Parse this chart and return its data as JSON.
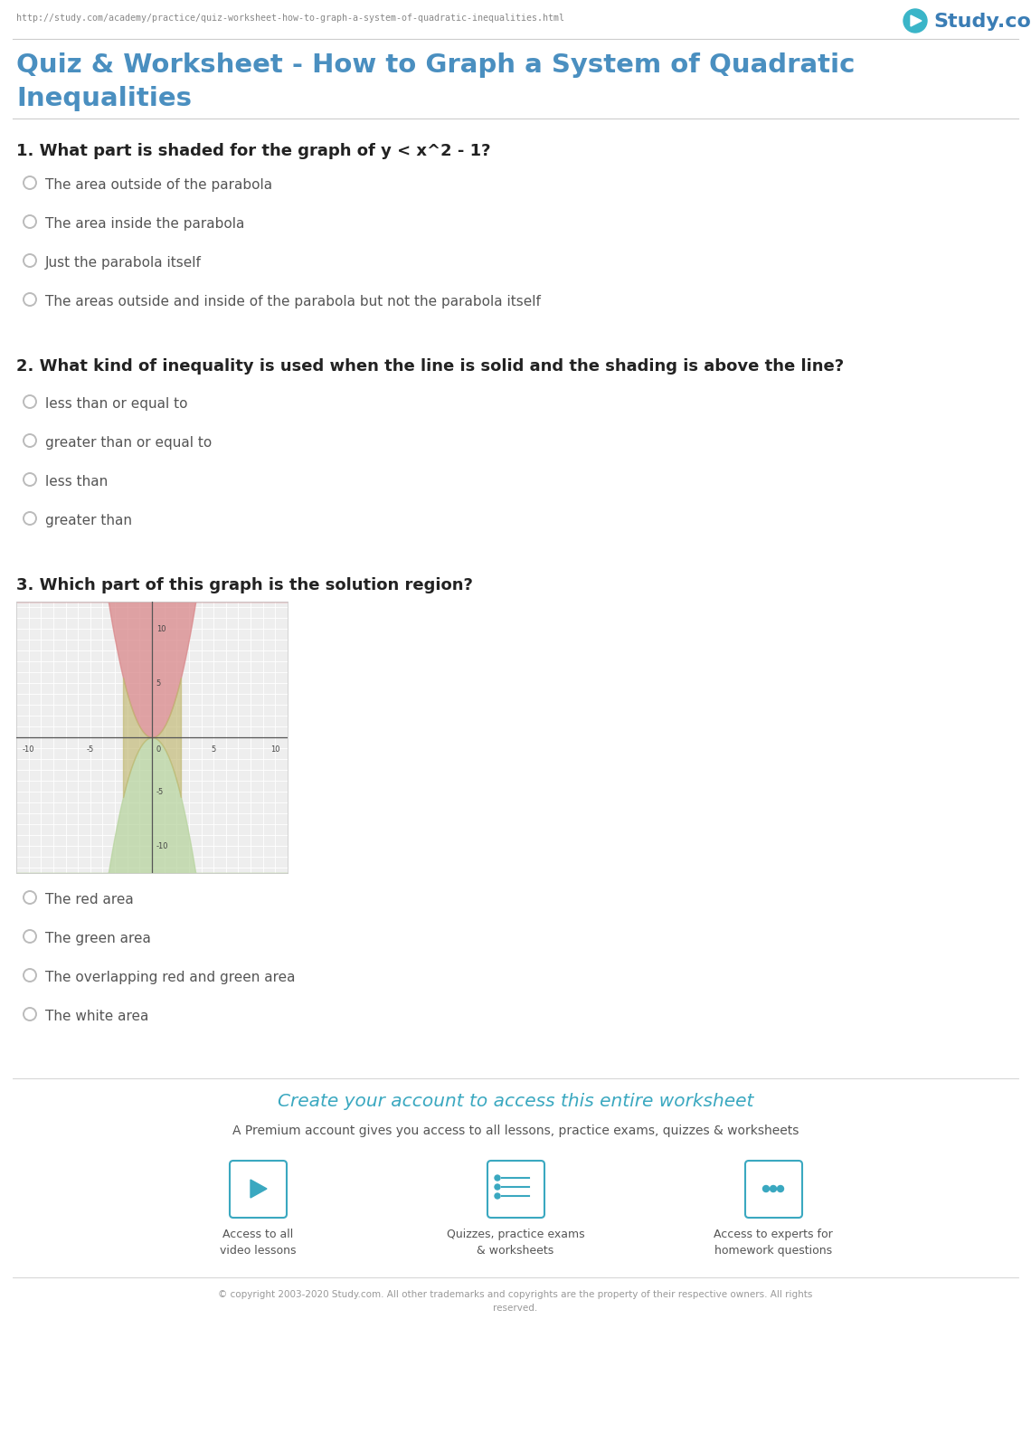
{
  "url": "http://study.com/academy/practice/quiz-worksheet-how-to-graph-a-system-of-quadratic-inequalities.html",
  "logo_text": "Study.com",
  "title_line1": "Quiz & Worksheet - How to Graph a System of Quadratic",
  "title_line2": "Inequalities",
  "title_color": "#4a8fc0",
  "bg_color": "#ffffff",
  "separator_color": "#cccccc",
  "option_color": "#555555",
  "radio_color": "#bbbbbb",
  "question_color": "#222222",
  "q1_text": "1. What part is shaded for the graph of y < x^2 - 1?",
  "q1_options": [
    "The area outside of the parabola",
    "The area inside the parabola",
    "Just the parabola itself",
    "The areas outside and inside of the parabola but not the parabola itself"
  ],
  "q2_text": "2. What kind of inequality is used when the line is solid and the shading is above the line?",
  "q2_options": [
    "less than or equal to",
    "greater than or equal to",
    "less than",
    "greater than"
  ],
  "q3_text": "3. Which part of this graph is the solution region?",
  "q3_options": [
    "The red area",
    "The green area",
    "The overlapping red and green area",
    "The white area"
  ],
  "red_fill_color": "#d9878a",
  "green_fill_color": "#b8d4a0",
  "overlap_color": "#c0b870",
  "graph_bg": "#eeeeee",
  "grid_color": "#ffffff",
  "axis_color": "#555555",
  "cta_text": "Create your account to access this entire worksheet",
  "cta_subtext": "A Premium account gives you access to all lessons, practice exams, quizzes & worksheets",
  "cta_color": "#3aa8c0",
  "icon_color": "#3aa8c0",
  "icon_labels": [
    "Access to all\nvideo lessons",
    "Quizzes, practice exams\n& worksheets",
    "Access to experts for\nhomework questions"
  ],
  "footer_text": "© copyright 2003-2020 Study.com. All other trademarks and copyrights are the property of their respective owners. All rights\nreserved.",
  "url_color": "#888888",
  "logo_circle_color": "#3ab5c8"
}
